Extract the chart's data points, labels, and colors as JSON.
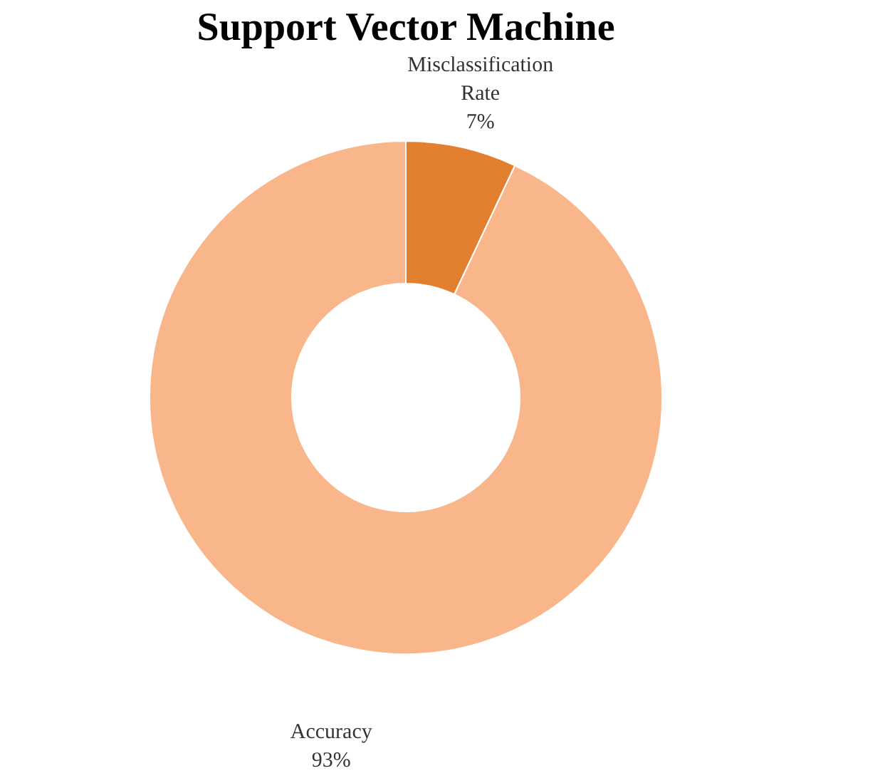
{
  "chart_data": {
    "type": "donut",
    "title": "Support Vector Machine",
    "categories": [
      "Misclassification Rate",
      "Accuracy"
    ],
    "values": [
      7,
      93
    ],
    "colors": [
      "#e3802f",
      "#f8b68a"
    ],
    "value_labels": [
      "7%",
      "93%"
    ],
    "legend": false
  }
}
